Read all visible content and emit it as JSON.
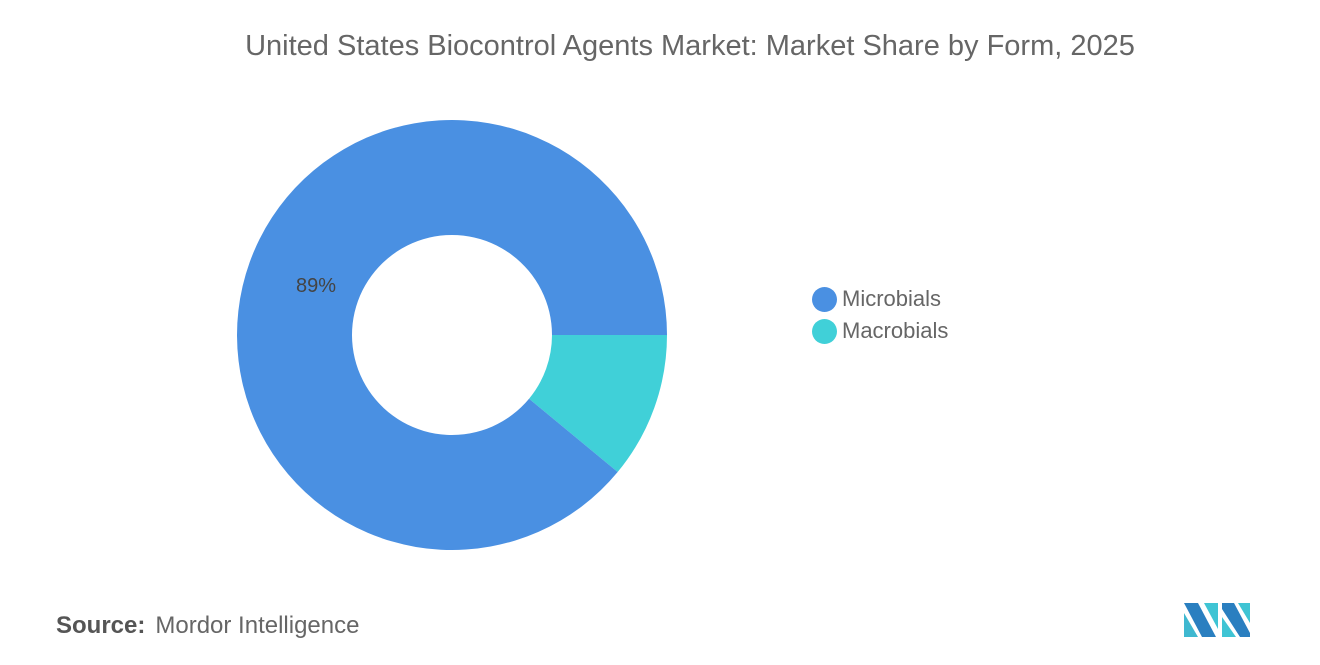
{
  "chart_data": {
    "type": "pie",
    "title": "United States Biocontrol Agents Market: Market Share by Form, 2025",
    "donut": true,
    "slices": [
      {
        "name": "Microbials",
        "value": 89,
        "label": "89%",
        "color": "#4a90e2"
      },
      {
        "name": "Macrobials",
        "value": 11,
        "label": "",
        "color": "#40d0d8"
      }
    ],
    "legend_position": "right"
  },
  "source": {
    "label": "Source:",
    "value": "Mordor Intelligence"
  },
  "logo": {
    "text": "Mordor Intelligence"
  }
}
